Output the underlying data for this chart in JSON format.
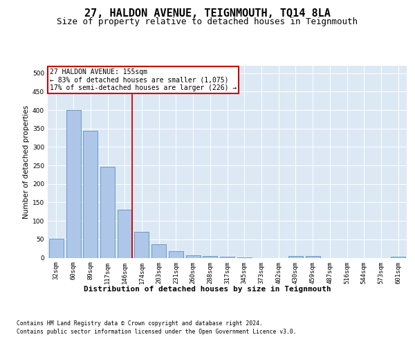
{
  "title1": "27, HALDON AVENUE, TEIGNMOUTH, TQ14 8LA",
  "title2": "Size of property relative to detached houses in Teignmouth",
  "xlabel": "Distribution of detached houses by size in Teignmouth",
  "ylabel": "Number of detached properties",
  "categories": [
    "32sqm",
    "60sqm",
    "89sqm",
    "117sqm",
    "146sqm",
    "174sqm",
    "203sqm",
    "231sqm",
    "260sqm",
    "288sqm",
    "317sqm",
    "345sqm",
    "373sqm",
    "402sqm",
    "430sqm",
    "459sqm",
    "487sqm",
    "516sqm",
    "544sqm",
    "573sqm",
    "601sqm"
  ],
  "values": [
    51,
    401,
    343,
    246,
    130,
    70,
    36,
    17,
    6,
    5,
    2,
    1,
    0,
    0,
    4,
    4,
    0,
    0,
    0,
    0,
    3
  ],
  "bar_color": "#aec6e8",
  "bar_edge_color": "#5a8fc0",
  "vline_color": "#cc0000",
  "annotation_title": "27 HALDON AVENUE: 155sqm",
  "annotation_line1": "← 83% of detached houses are smaller (1,075)",
  "annotation_line2": "17% of semi-detached houses are larger (226) →",
  "annotation_box_color": "#cc0000",
  "footnote1": "Contains HM Land Registry data © Crown copyright and database right 2024.",
  "footnote2": "Contains public sector information licensed under the Open Government Licence v3.0.",
  "ylim": [
    0,
    520
  ],
  "yticks": [
    0,
    50,
    100,
    150,
    200,
    250,
    300,
    350,
    400,
    450,
    500
  ],
  "bg_color": "#dce9f5",
  "fig_bg": "#ffffff",
  "title1_fontsize": 11,
  "title2_fontsize": 9,
  "xlabel_fontsize": 8,
  "ylabel_fontsize": 7.5,
  "tick_fontsize": 6.5,
  "annot_fontsize": 7,
  "footnote_fontsize": 5.8
}
